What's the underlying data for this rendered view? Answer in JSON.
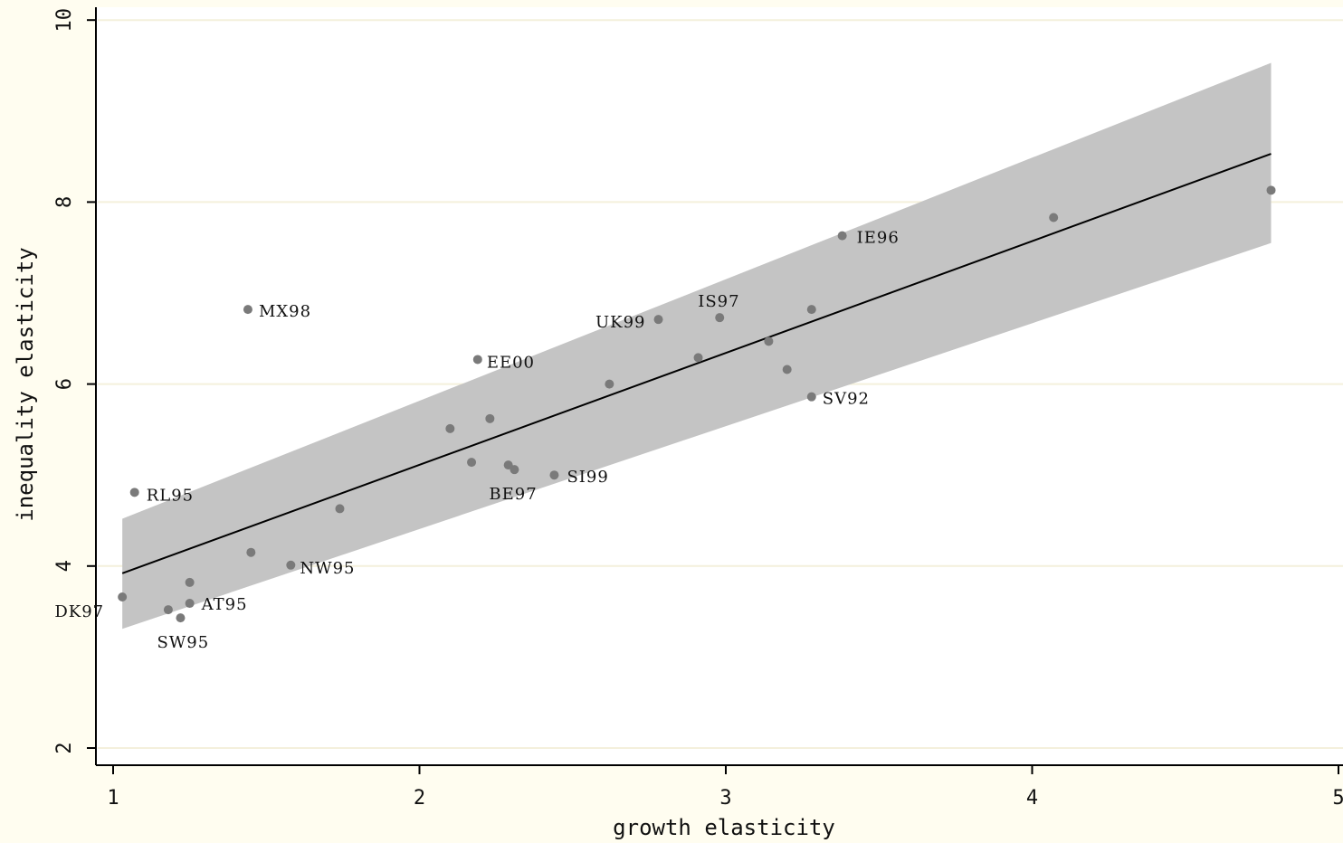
{
  "chart_data": {
    "type": "scatter",
    "title": "",
    "xlabel": "growth elasticity",
    "ylabel": "inequality elasticity",
    "xlim": [
      1,
      5
    ],
    "ylim": [
      2,
      10
    ],
    "xticks": [
      "1",
      "2",
      "3",
      "4",
      "5"
    ],
    "yticks": [
      "2",
      "4",
      "6",
      "8",
      "10"
    ],
    "grid": true,
    "legend": "none",
    "colors": {
      "background": "#fffdf0",
      "plot_background": "#ffffff",
      "points": "#7a7a7a",
      "confidence_band": "#c4c4c4",
      "fit_line": "#000000"
    },
    "points": [
      {
        "x": 1.03,
        "y": 3.66,
        "label": "DK97"
      },
      {
        "x": 1.07,
        "y": 4.81,
        "label": "RL95"
      },
      {
        "x": 1.18,
        "y": 3.52,
        "label": ""
      },
      {
        "x": 1.22,
        "y": 3.43,
        "label": "SW95"
      },
      {
        "x": 1.25,
        "y": 3.82,
        "label": ""
      },
      {
        "x": 1.25,
        "y": 3.59,
        "label": "AT95"
      },
      {
        "x": 1.44,
        "y": 6.82,
        "label": "MX98"
      },
      {
        "x": 1.45,
        "y": 4.15,
        "label": ""
      },
      {
        "x": 1.58,
        "y": 4.01,
        "label": "NW95"
      },
      {
        "x": 1.74,
        "y": 4.63,
        "label": ""
      },
      {
        "x": 2.1,
        "y": 5.51,
        "label": ""
      },
      {
        "x": 2.17,
        "y": 5.14,
        "label": ""
      },
      {
        "x": 2.19,
        "y": 6.27,
        "label": "EE00"
      },
      {
        "x": 2.23,
        "y": 5.62,
        "label": ""
      },
      {
        "x": 2.29,
        "y": 5.11,
        "label": ""
      },
      {
        "x": 2.31,
        "y": 5.06,
        "label": "BE97"
      },
      {
        "x": 2.44,
        "y": 5.0,
        "label": "SI99"
      },
      {
        "x": 2.62,
        "y": 6.0,
        "label": ""
      },
      {
        "x": 2.78,
        "y": 6.71,
        "label": "UK99"
      },
      {
        "x": 2.91,
        "y": 6.29,
        "label": ""
      },
      {
        "x": 2.98,
        "y": 6.73,
        "label": "IS97"
      },
      {
        "x": 3.14,
        "y": 6.47,
        "label": ""
      },
      {
        "x": 3.2,
        "y": 6.16,
        "label": ""
      },
      {
        "x": 3.28,
        "y": 6.82,
        "label": ""
      },
      {
        "x": 3.28,
        "y": 5.86,
        "label": "SV92"
      },
      {
        "x": 3.38,
        "y": 7.63,
        "label": "IE96"
      },
      {
        "x": 4.07,
        "y": 7.83,
        "label": ""
      },
      {
        "x": 4.78,
        "y": 8.13,
        "label": ""
      }
    ],
    "fit_line": {
      "x": [
        1.03,
        4.78
      ],
      "y": [
        3.92,
        8.53
      ]
    },
    "confidence_band": {
      "x": [
        1.03,
        4.78
      ],
      "upper": [
        4.52,
        9.53
      ],
      "lower": [
        3.31,
        7.55
      ]
    }
  }
}
